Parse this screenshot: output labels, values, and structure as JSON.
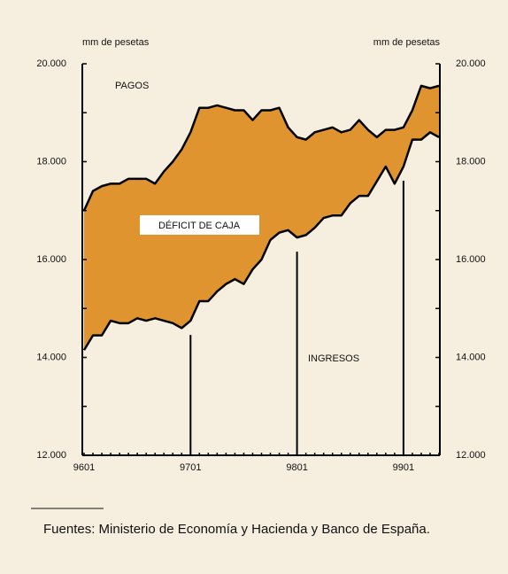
{
  "chart_data": {
    "type": "band",
    "y_label": "mm de pesetas",
    "y2_label": "mm de pesetas",
    "categories": [
      "9601",
      null,
      null,
      null,
      null,
      null,
      null,
      null,
      null,
      null,
      null,
      null,
      "9701",
      null,
      null,
      null,
      null,
      null,
      null,
      null,
      null,
      null,
      null,
      null,
      "9801",
      null,
      null,
      null,
      null,
      null,
      null,
      null,
      null,
      null,
      null,
      null,
      "9901",
      null,
      null,
      null,
      null
    ],
    "series": [
      {
        "name": "PAGOS",
        "color": "#000000",
        "values": [
          17000,
          17400,
          17500,
          17550,
          17550,
          17650,
          17650,
          17650,
          17550,
          17800,
          18000,
          18250,
          18600,
          19100,
          19100,
          19150,
          19100,
          19050,
          19050,
          18850,
          19050,
          19050,
          19100,
          18700,
          18500,
          18450,
          18600,
          18650,
          18700,
          18600,
          18650,
          18850,
          18650,
          18500,
          18650,
          18650,
          18700,
          19050,
          19550,
          19500,
          19550
        ]
      },
      {
        "name": "INGRESOS",
        "color": "#000000",
        "values": [
          14150,
          14450,
          14450,
          14750,
          14700,
          14700,
          14800,
          14750,
          14800,
          14750,
          14700,
          14600,
          14750,
          15150,
          15150,
          15350,
          15500,
          15600,
          15500,
          15800,
          16000,
          16400,
          16550,
          16600,
          16450,
          16500,
          16650,
          16850,
          16900,
          16900,
          17150,
          17300,
          17300,
          17600,
          17900,
          17550,
          17900,
          18450,
          18450,
          18600,
          18500
        ]
      }
    ],
    "fill_color": "#e0942f",
    "band_label": "DÉFICIT DE CAJA",
    "ylim": [
      12000,
      20000
    ],
    "yticks": [
      {
        "value": 12000,
        "label": "12.000"
      },
      {
        "value": 14000,
        "label": "14.000"
      },
      {
        "value": 16000,
        "label": "16.000"
      },
      {
        "value": 18000,
        "label": "18.000"
      },
      {
        "value": 20000,
        "label": "20.000"
      }
    ],
    "y2lim": [
      12000,
      20000
    ],
    "y2ticks": [
      {
        "value": 12000,
        "label": "12.000"
      },
      {
        "value": 14000,
        "label": "14.000"
      },
      {
        "value": 16000,
        "label": "16.000"
      },
      {
        "value": 18000,
        "label": "18.000"
      },
      {
        "value": 20000,
        "label": "20.000"
      }
    ],
    "source": "Fuentes: Ministerio de Economía y Hacienda y Banco de España."
  }
}
